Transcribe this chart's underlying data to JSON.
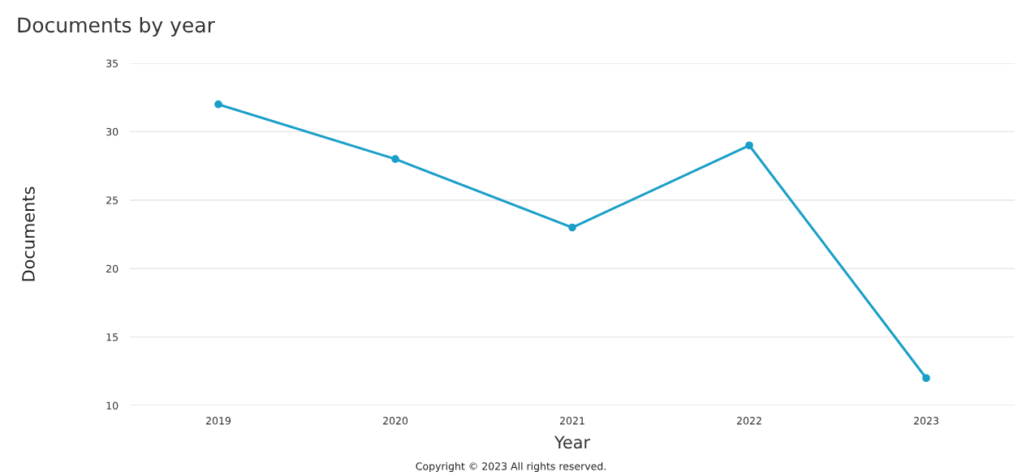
{
  "chart_data": {
    "type": "line",
    "title": "Documents by year",
    "xlabel": "Year",
    "ylabel": "Documents",
    "categories": [
      "2019",
      "2020",
      "2021",
      "2022",
      "2023"
    ],
    "series": [
      {
        "color": "#1a9fc9",
        "values": [
          32,
          28,
          23,
          29,
          12
        ]
      }
    ],
    "ylim": [
      10,
      35
    ],
    "yticks": [
      10,
      15,
      20,
      25,
      30,
      35
    ],
    "grid": "y",
    "marker": "circle",
    "line_style": "solid",
    "annotations": [
      "Copyright © 2023 All rights reserved."
    ]
  }
}
